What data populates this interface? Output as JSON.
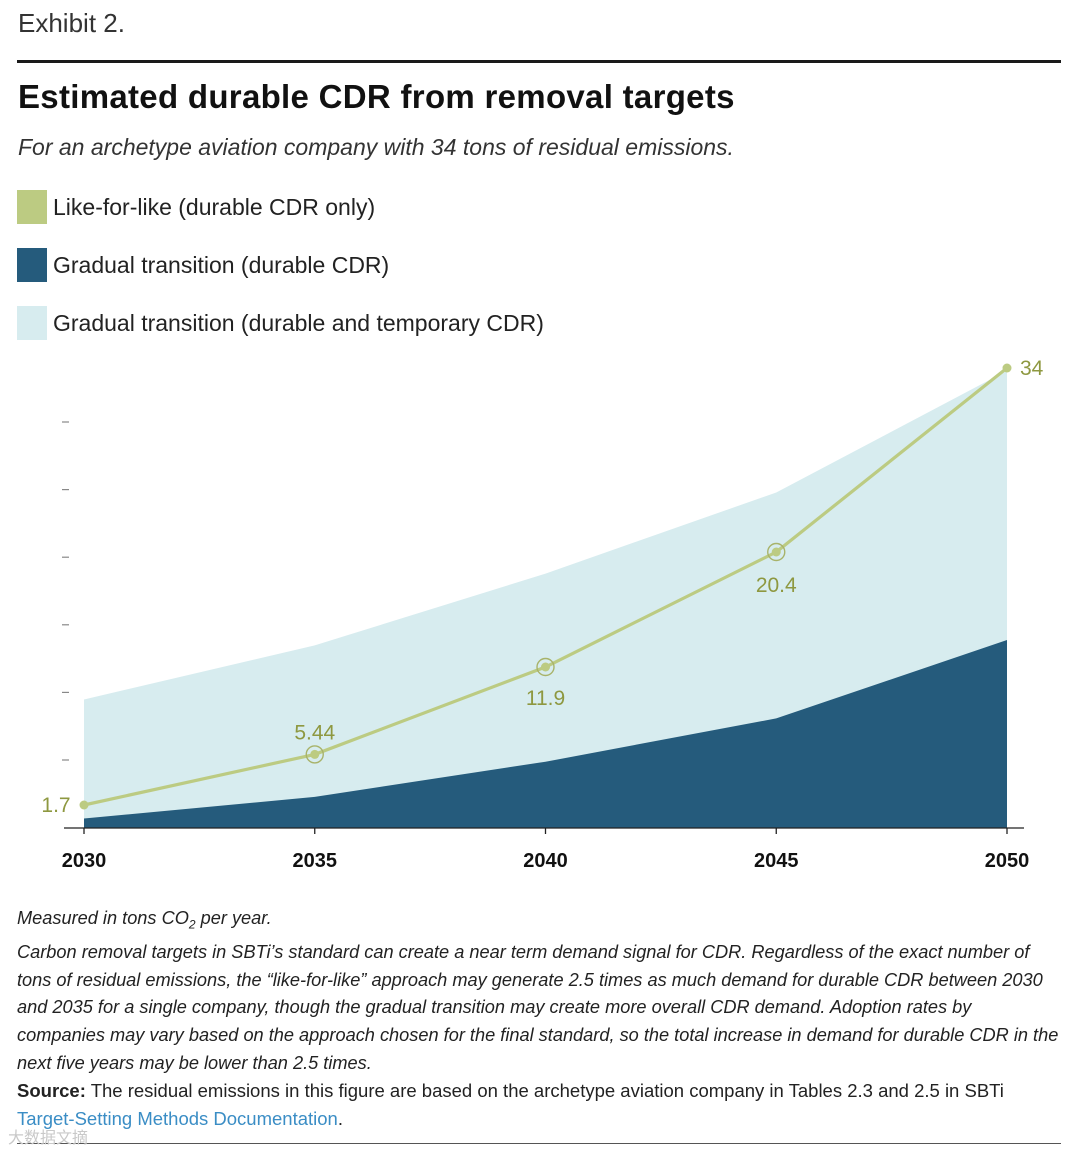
{
  "header": {
    "exhibit": "Exhibit 2.",
    "title": "Estimated durable CDR from removal targets",
    "subtitle": "For an archetype aviation company with 34 tons of residual emissions."
  },
  "legend": [
    {
      "label": "Like-for-like (durable CDR only)",
      "color": "#bccb82"
    },
    {
      "label": "Gradual transition (durable CDR)",
      "color": "#255b7c"
    },
    {
      "label": "Gradual transition (durable and temporary CDR)",
      "color": "#d7ecef"
    }
  ],
  "chart_data": {
    "type": "area",
    "categories": [
      "2030",
      "2035",
      "2040",
      "2045",
      "2050"
    ],
    "ylim": [
      0,
      34
    ],
    "grid": false,
    "legend_position": "top-left",
    "series": [
      {
        "name": "Gradual transition (durable and temporary CDR)",
        "kind": "area",
        "color": "#d7ecef",
        "values": [
          9.5,
          13.5,
          18.8,
          24.8,
          33.8
        ]
      },
      {
        "name": "Gradual transition (durable CDR)",
        "kind": "area",
        "color": "#255b7c",
        "values": [
          0.7,
          2.3,
          4.9,
          8.1,
          13.9
        ]
      },
      {
        "name": "Like-for-like (durable CDR only)",
        "kind": "line",
        "color": "#bccb82",
        "values": [
          1.7,
          5.44,
          11.9,
          20.4,
          34
        ]
      }
    ],
    "data_labels": [
      "1.7",
      "5.44",
      "11.9",
      "20.4",
      "34"
    ],
    "label_color": "#8e9840"
  },
  "notes": {
    "measured_prefix": "Measured in tons CO",
    "measured_sub": "2",
    "measured_suffix": " per year.",
    "body": "Carbon removal targets in SBTi’s standard can create a near term demand signal for CDR. Regardless of the exact number of tons of residual emissions, the “like-for-like” approach may generate 2.5 times as much demand for durable CDR between 2030 and 2035 for a single company, though the gradual transition may create more overall CDR demand. Adoption rates by companies may vary based on the approach chosen for the final standard, so the total increase in demand for durable CDR in the next five years may be lower than 2.5 times."
  },
  "source": {
    "label": "Source:",
    "text": " The residual emissions in this figure are based on the archetype aviation company in Tables 2.3 and 2.5 in SBTi ",
    "link": "Target-Setting Methods Documentation",
    "end": "."
  },
  "watermark": "大数据文摘"
}
